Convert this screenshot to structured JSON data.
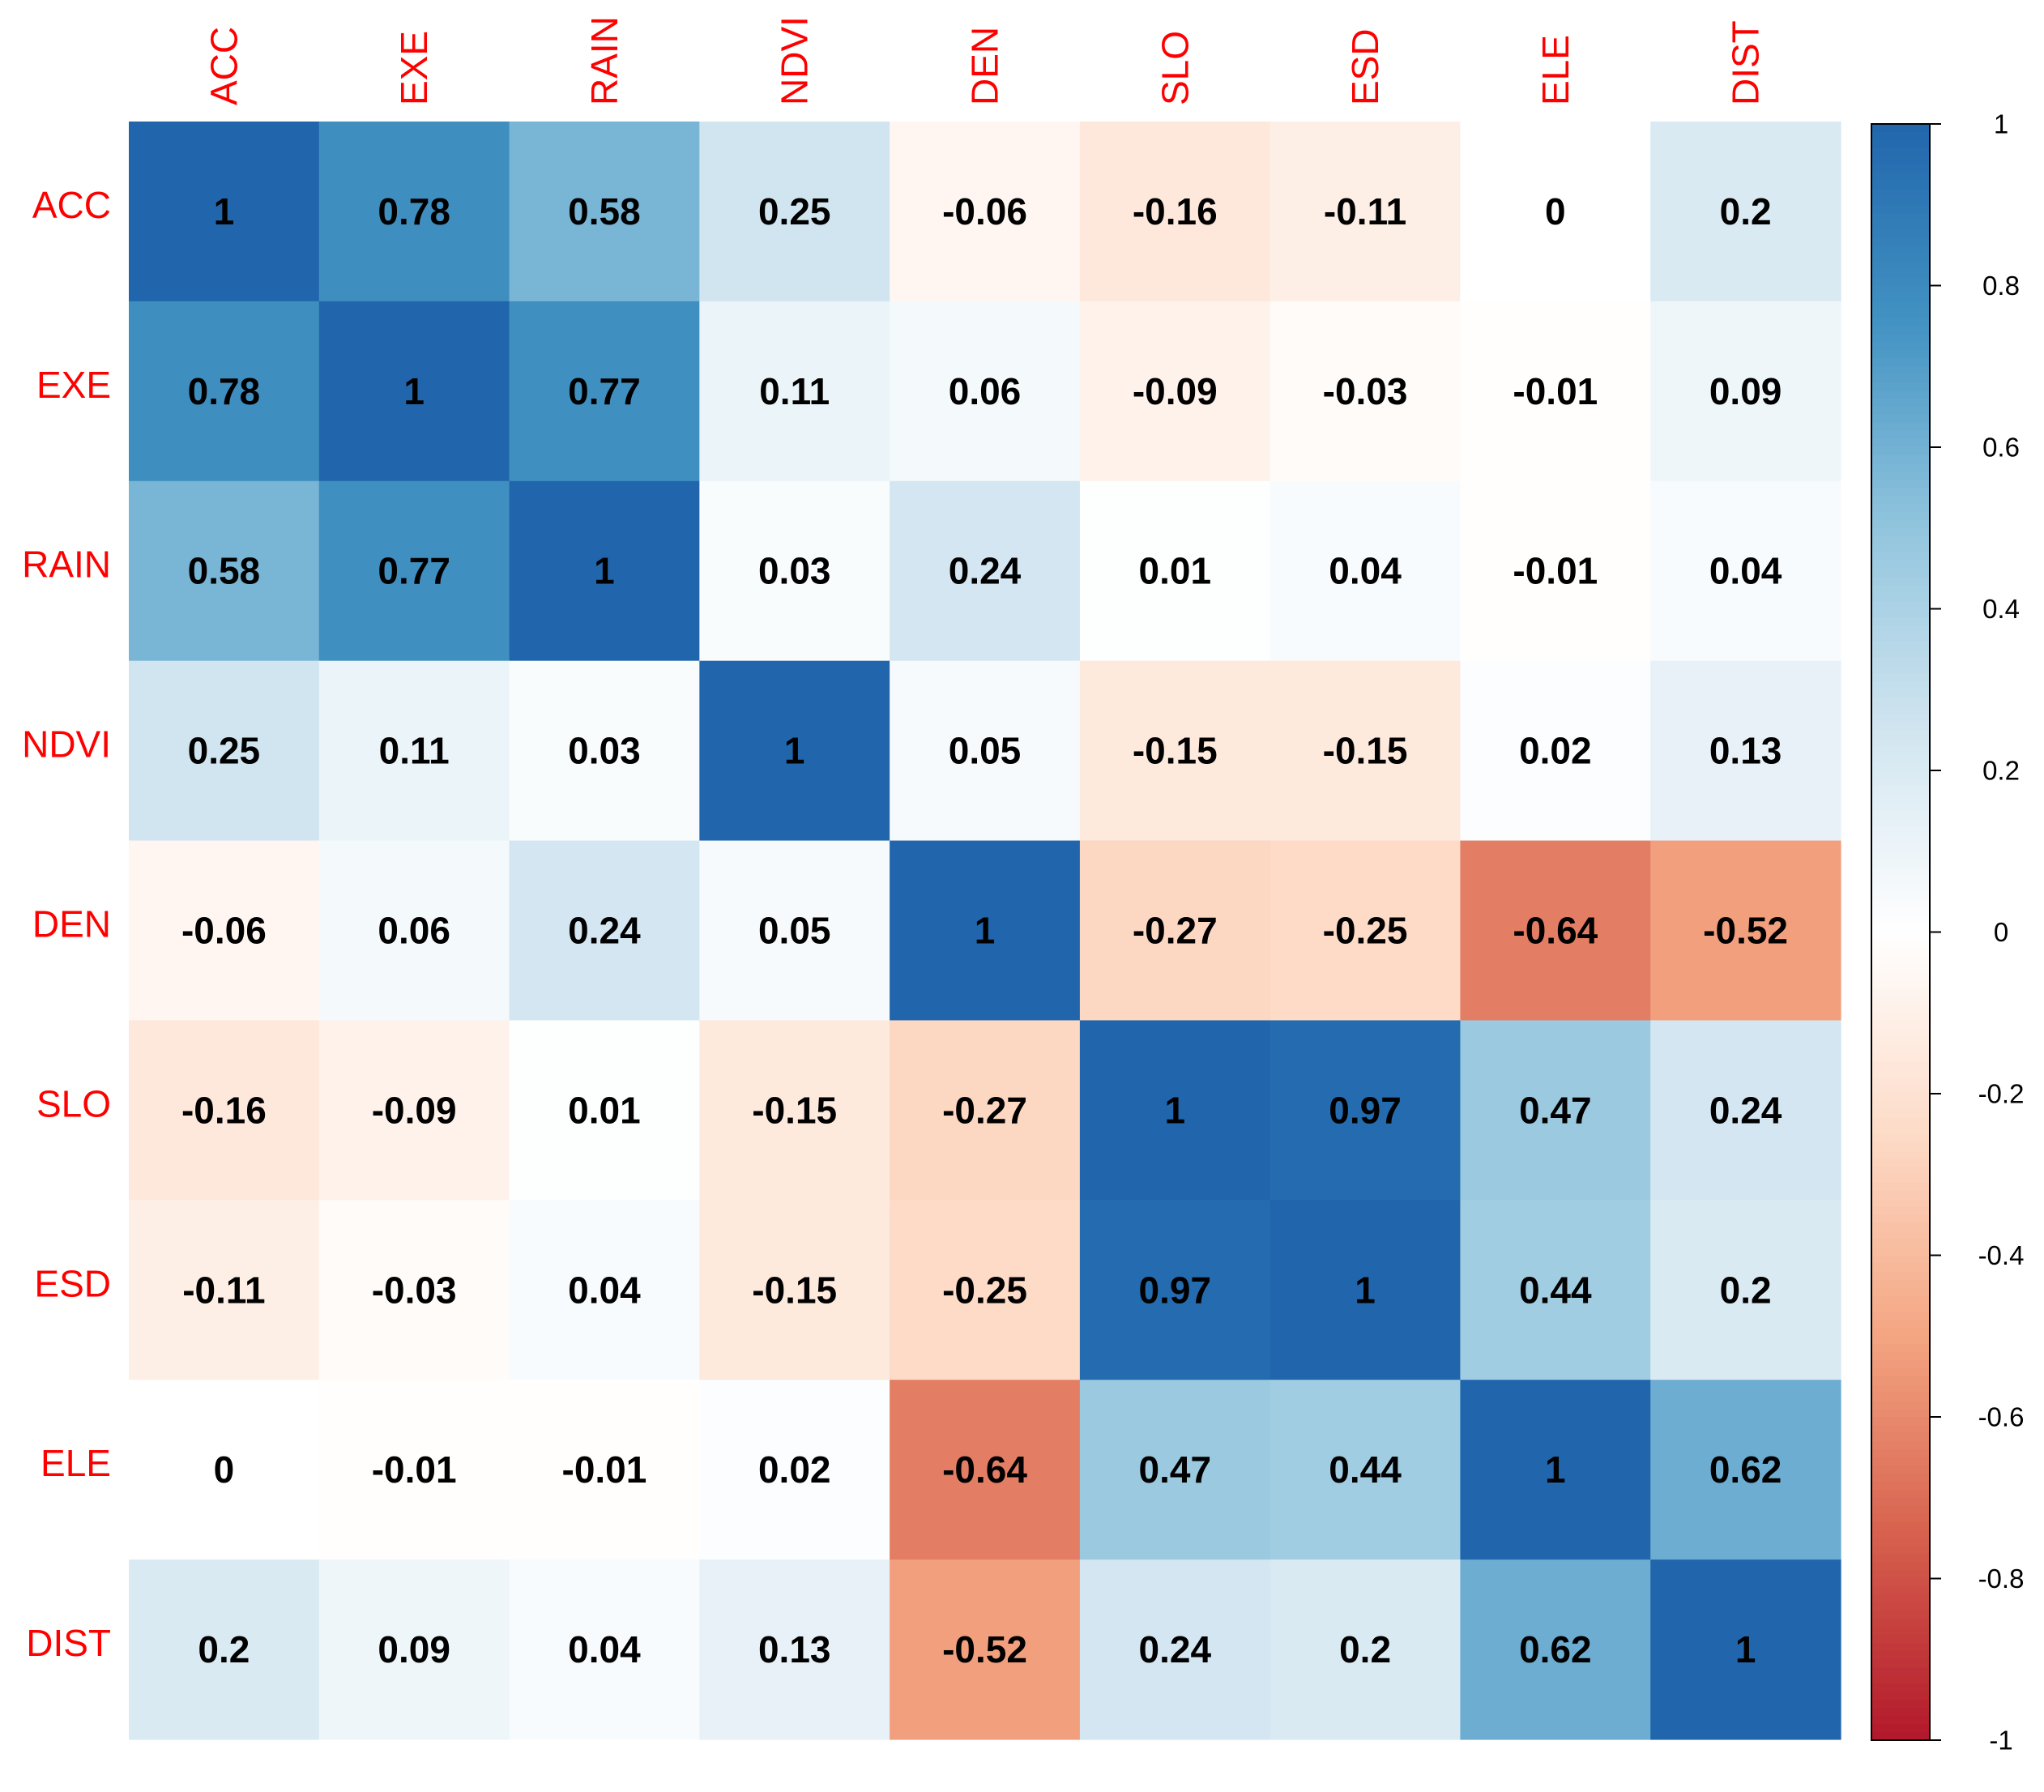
{
  "chart_data": {
    "type": "heatmap",
    "title": "",
    "variables": [
      "ACC",
      "EXE",
      "RAIN",
      "NDVI",
      "DEN",
      "SLO",
      "ESD",
      "ELE",
      "DIST"
    ],
    "matrix": [
      [
        1,
        0.78,
        0.58,
        0.25,
        -0.06,
        -0.16,
        -0.11,
        0,
        0.2
      ],
      [
        0.78,
        1,
        0.77,
        0.11,
        0.06,
        -0.09,
        -0.03,
        -0.01,
        0.09
      ],
      [
        0.58,
        0.77,
        1,
        0.03,
        0.24,
        0.01,
        0.04,
        -0.01,
        0.04
      ],
      [
        0.25,
        0.11,
        0.03,
        1,
        0.05,
        -0.15,
        -0.15,
        0.02,
        0.13
      ],
      [
        -0.06,
        0.06,
        0.24,
        0.05,
        1,
        -0.27,
        -0.25,
        -0.64,
        -0.52
      ],
      [
        -0.16,
        -0.09,
        0.01,
        -0.15,
        -0.27,
        1,
        0.97,
        0.47,
        0.24
      ],
      [
        -0.11,
        -0.03,
        0.04,
        -0.15,
        -0.25,
        0.97,
        1,
        0.44,
        0.2
      ],
      [
        0,
        -0.01,
        -0.01,
        0.02,
        -0.64,
        0.47,
        0.44,
        1,
        0.62
      ],
      [
        0.2,
        0.09,
        0.04,
        0.13,
        -0.52,
        0.24,
        0.2,
        0.62,
        1
      ]
    ],
    "colorbar": {
      "range": [
        -1,
        1
      ],
      "ticks": [
        1,
        0.8,
        0.6,
        0.4,
        0.2,
        0,
        -0.2,
        -0.4,
        -0.6,
        -0.8,
        -1
      ],
      "tick_labels": [
        "1",
        "0.8",
        "0.6",
        "0.4",
        "0.2",
        "0",
        "-0.2",
        "-0.4",
        "-0.6",
        "-0.8",
        "-1"
      ],
      "placement": "right"
    },
    "colors": {
      "strong_negative": "#B2182B",
      "mid_negative": "#D6604D",
      "light_negative": "#F4A582",
      "pale_negative": "#FDDBC7",
      "neutral": "#FFFFFF",
      "pale_positive": "#D1E5F0",
      "light_positive": "#92C5DE",
      "mid_positive": "#4393C3",
      "strong_positive": "#2166AC",
      "label_color": "#FF0000"
    }
  }
}
